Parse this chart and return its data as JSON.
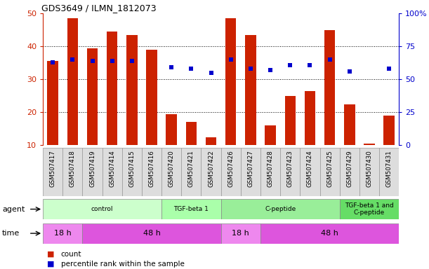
{
  "title": "GDS3649 / ILMN_1812073",
  "samples": [
    "GSM507417",
    "GSM507418",
    "GSM507419",
    "GSM507414",
    "GSM507415",
    "GSM507416",
    "GSM507420",
    "GSM507421",
    "GSM507422",
    "GSM507426",
    "GSM507427",
    "GSM507428",
    "GSM507423",
    "GSM507424",
    "GSM507425",
    "GSM507429",
    "GSM507430",
    "GSM507431"
  ],
  "bar_values": [
    35.5,
    48.5,
    39.5,
    44.5,
    43.5,
    39.0,
    19.5,
    17.0,
    12.5,
    48.5,
    43.5,
    16.0,
    25.0,
    26.5,
    45.0,
    22.5,
    10.5,
    19.0
  ],
  "dot_values": [
    63,
    65,
    64,
    64,
    64,
    null,
    59,
    58,
    55,
    65,
    58,
    57,
    61,
    61,
    65,
    56,
    null,
    58
  ],
  "bar_color": "#cc2200",
  "dot_color": "#0000cc",
  "ylim_left": [
    10,
    50
  ],
  "ylim_right": [
    0,
    100
  ],
  "yticks_left": [
    10,
    20,
    30,
    40,
    50
  ],
  "yticks_right": [
    0,
    25,
    50,
    75,
    100
  ],
  "ytick_labels_right": [
    "0",
    "25",
    "50",
    "75",
    "100%"
  ],
  "agent_groups": [
    {
      "label": "control",
      "start": 0,
      "end": 6,
      "color": "#ccffcc"
    },
    {
      "label": "TGF-beta 1",
      "start": 6,
      "end": 9,
      "color": "#aaffaa"
    },
    {
      "label": "C-peptide",
      "start": 9,
      "end": 15,
      "color": "#99ee99"
    },
    {
      "label": "TGF-beta 1 and\nC-peptide",
      "start": 15,
      "end": 18,
      "color": "#66dd66"
    }
  ],
  "time_groups": [
    {
      "label": "18 h",
      "start": 0,
      "end": 2,
      "color": "#ee88ee"
    },
    {
      "label": "48 h",
      "start": 2,
      "end": 9,
      "color": "#dd55dd"
    },
    {
      "label": "18 h",
      "start": 9,
      "end": 11,
      "color": "#ee88ee"
    },
    {
      "label": "48 h",
      "start": 11,
      "end": 18,
      "color": "#dd55dd"
    }
  ],
  "legend_count_color": "#cc2200",
  "legend_dot_color": "#0000cc",
  "left_tick_color": "#cc2200",
  "right_tick_color": "#0000cc",
  "sample_box_color": "#dddddd",
  "sample_box_edge": "#999999"
}
